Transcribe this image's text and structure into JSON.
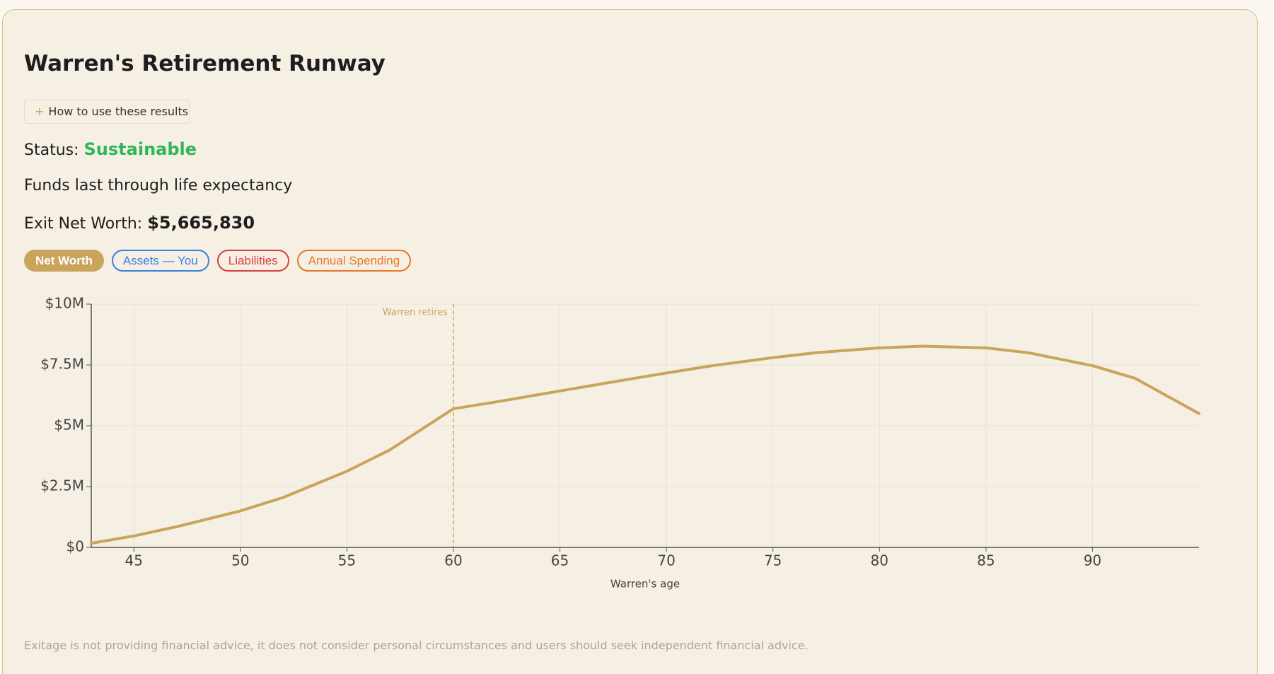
{
  "header": {
    "title": "Warren's Retirement Runway",
    "help_button": "How to use these results"
  },
  "status": {
    "label": "Status:",
    "value": "Sustainable"
  },
  "summary": "Funds last through life expectancy",
  "exit_net_worth": {
    "label": "Exit Net Worth:",
    "value": "$5,665,830"
  },
  "toggles": [
    {
      "label": "Net Worth",
      "color": "#c9a45a",
      "active": true
    },
    {
      "label": "Assets — You",
      "color": "#3b7fe0",
      "active": false
    },
    {
      "label": "Liabilities",
      "color": "#d94040",
      "active": false
    },
    {
      "label": "Annual Spending",
      "color": "#e8782a",
      "active": false
    }
  ],
  "chart_data": {
    "type": "line",
    "x_label": "Warren's age",
    "x": [
      43,
      45,
      47,
      50,
      52,
      55,
      57,
      60,
      62,
      65,
      67,
      70,
      72,
      75,
      77,
      80,
      82,
      85,
      87,
      90,
      92,
      95
    ],
    "series": [
      {
        "name": "Net Worth",
        "color": "#c9a45a",
        "values": [
          170000,
          470000,
          850000,
          1500000,
          2050000,
          3130000,
          4000000,
          5700000,
          5980000,
          6430000,
          6730000,
          7170000,
          7450000,
          7800000,
          8000000,
          8200000,
          8270000,
          8200000,
          8000000,
          7470000,
          6950000,
          5500000
        ]
      }
    ],
    "xlim": [
      43,
      95
    ],
    "xticks": [
      45,
      50,
      55,
      60,
      65,
      70,
      75,
      80,
      85,
      90
    ],
    "ylim": [
      0,
      10000000
    ],
    "yticks": [
      {
        "value": 0,
        "label": "$0"
      },
      {
        "value": 2500000,
        "label": "$2.5M"
      },
      {
        "value": 5000000,
        "label": "$5M"
      },
      {
        "value": 7500000,
        "label": "$7.5M"
      },
      {
        "value": 10000000,
        "label": "$10M"
      }
    ],
    "grid": true,
    "annotations": [
      {
        "x": 60,
        "text": "Warren retires"
      }
    ]
  },
  "disclaimer": "Exitage is not providing financial advice, it does not consider personal circumstances and users should seek independent financial advice."
}
